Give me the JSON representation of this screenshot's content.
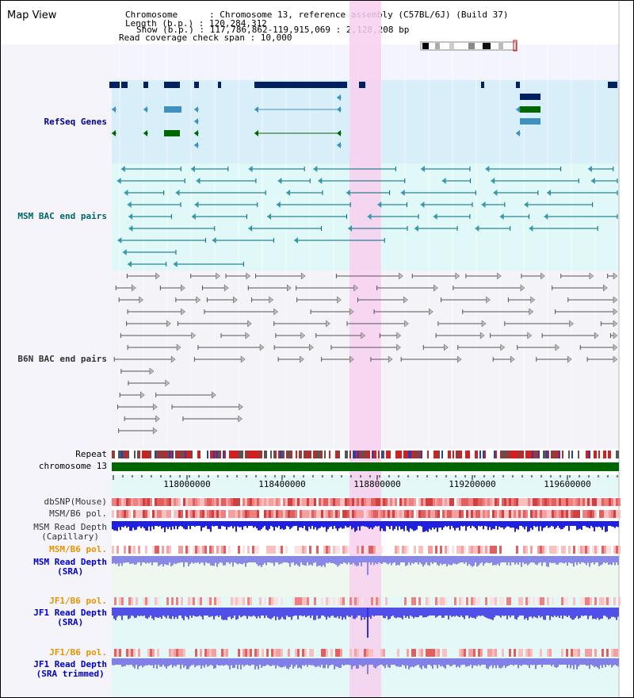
{
  "window": {
    "title": "Map View"
  },
  "info": {
    "chromosome_line": "Chromosome      : Chromosome 13, reference assembly (C57BL/6J) (Build 37)",
    "length_line": "Length (b.p.) : 120,284,312",
    "show_line": "Show (b.p.) : 117,786,862-119,915,069 : 2,128,208 bp",
    "coverage_line": "Read coverage check span : 10,000"
  },
  "tracks": {
    "refseq": "RefSeq Genes",
    "msm_bac": "MSM BAC end pairs",
    "b6n_bac": "B6N BAC end pairs",
    "repeat": "Repeat",
    "chromosome": "chromosome 13",
    "dbsnp": "dbSNP(Mouse)",
    "msm_pol1": "MSM/B6 pol.",
    "msm_depth_cap": "MSM Read Depth\n(Capillary)",
    "msm_pol2": "MSM/B6 pol.",
    "msm_depth_sra": "MSM Read Depth\n(SRA)",
    "jf1_pol1": "JF1/B6 pol.",
    "jf1_depth_sra": "JF1 Read Depth\n(SRA)",
    "jf1_pol2": "JF1/B6 pol.",
    "jf1_depth_trim": "JF1 Read Depth\n(SRA trimmed)"
  },
  "axis": {
    "ticks": [
      "118000000",
      "118400000",
      "118800000",
      "119200000",
      "119600000"
    ]
  },
  "colors": {
    "navy": "#000099",
    "teal": "#006666",
    "orange": "#e69500",
    "highlight": "#f8d0f0",
    "chromosome_bar": "#006600"
  }
}
